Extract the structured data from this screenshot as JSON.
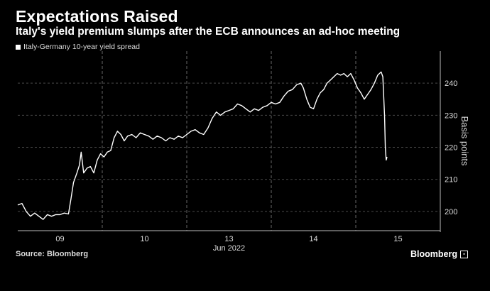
{
  "header": {
    "title": "Expectations Raised",
    "subtitle": "Italy's yield premium slumps after the ECB announces an ad-hoc meeting"
  },
  "footer": {
    "source": "Source: Bloomberg",
    "brand": "Bloomberg"
  },
  "colors": {
    "background": "#000000",
    "line": "#ffffff",
    "grid": "#555555",
    "text": "#dddddd"
  },
  "chart_data": {
    "type": "line",
    "title": "Expectations Raised",
    "subtitle": "Italy's yield premium slumps after the ECB announces an ad-hoc meeting",
    "ylabel": "Basis points",
    "xlabel": "Jun 2022",
    "x_ticks": [
      "09",
      "10",
      "13",
      "14",
      "15"
    ],
    "y_ticks": [
      200,
      210,
      220,
      230,
      240
    ],
    "ylim": [
      194,
      250
    ],
    "xlim": [
      0,
      5
    ],
    "grid": true,
    "legend_placement": "top-left",
    "series": [
      {
        "name": "Italy-Germany 10-year yield spread",
        "points": [
          [
            0.0,
            202.0
          ],
          [
            0.05,
            202.5
          ],
          [
            0.1,
            200.0
          ],
          [
            0.15,
            198.5
          ],
          [
            0.2,
            199.5
          ],
          [
            0.25,
            198.5
          ],
          [
            0.3,
            197.5
          ],
          [
            0.35,
            199.0
          ],
          [
            0.4,
            198.5
          ],
          [
            0.45,
            199.0
          ],
          [
            0.5,
            199.0
          ],
          [
            0.55,
            199.5
          ],
          [
            0.6,
            199.2
          ],
          [
            0.63,
            204.0
          ],
          [
            0.66,
            209.0
          ],
          [
            0.7,
            212.0
          ],
          [
            0.73,
            214.5
          ],
          [
            0.75,
            218.5
          ],
          [
            0.78,
            212.0
          ],
          [
            0.82,
            213.5
          ],
          [
            0.86,
            214.0
          ],
          [
            0.9,
            212.0
          ],
          [
            0.94,
            216.0
          ],
          [
            0.98,
            218.0
          ],
          [
            1.02,
            217.0
          ],
          [
            1.06,
            218.5
          ],
          [
            1.1,
            219.0
          ],
          [
            1.14,
            223.0
          ],
          [
            1.18,
            225.0
          ],
          [
            1.22,
            224.0
          ],
          [
            1.26,
            222.0
          ],
          [
            1.3,
            223.5
          ],
          [
            1.35,
            224.0
          ],
          [
            1.4,
            223.0
          ],
          [
            1.45,
            224.5
          ],
          [
            1.5,
            224.0
          ],
          [
            1.55,
            223.5
          ],
          [
            1.6,
            222.5
          ],
          [
            1.65,
            223.5
          ],
          [
            1.7,
            223.0
          ],
          [
            1.75,
            222.0
          ],
          [
            1.8,
            223.0
          ],
          [
            1.85,
            222.5
          ],
          [
            1.9,
            223.5
          ],
          [
            1.95,
            223.0
          ],
          [
            2.0,
            224.0
          ],
          [
            2.05,
            225.0
          ],
          [
            2.1,
            225.5
          ],
          [
            2.15,
            224.5
          ],
          [
            2.2,
            224.0
          ],
          [
            2.25,
            226.0
          ],
          [
            2.3,
            229.0
          ],
          [
            2.35,
            231.0
          ],
          [
            2.4,
            230.0
          ],
          [
            2.45,
            231.0
          ],
          [
            2.5,
            231.5
          ],
          [
            2.55,
            232.0
          ],
          [
            2.6,
            233.5
          ],
          [
            2.65,
            233.0
          ],
          [
            2.7,
            232.0
          ],
          [
            2.75,
            231.0
          ],
          [
            2.8,
            232.0
          ],
          [
            2.85,
            231.5
          ],
          [
            2.9,
            232.5
          ],
          [
            2.95,
            233.0
          ],
          [
            3.0,
            234.0
          ],
          [
            3.05,
            233.5
          ],
          [
            3.1,
            234.0
          ],
          [
            3.15,
            236.0
          ],
          [
            3.2,
            237.5
          ],
          [
            3.25,
            238.0
          ],
          [
            3.3,
            239.5
          ],
          [
            3.35,
            240.0
          ],
          [
            3.38,
            238.5
          ],
          [
            3.42,
            235.0
          ],
          [
            3.46,
            232.5
          ],
          [
            3.5,
            232.0
          ],
          [
            3.54,
            235.0
          ],
          [
            3.58,
            237.0
          ],
          [
            3.62,
            238.0
          ],
          [
            3.66,
            240.0
          ],
          [
            3.7,
            241.0
          ],
          [
            3.74,
            242.0
          ],
          [
            3.78,
            243.0
          ],
          [
            3.82,
            242.5
          ],
          [
            3.86,
            243.0
          ],
          [
            3.9,
            242.0
          ],
          [
            3.94,
            243.0
          ],
          [
            3.98,
            241.0
          ],
          [
            4.02,
            238.5
          ],
          [
            4.06,
            237.0
          ],
          [
            4.1,
            235.0
          ],
          [
            4.14,
            236.5
          ],
          [
            4.18,
            238.0
          ],
          [
            4.22,
            240.0
          ],
          [
            4.26,
            242.5
          ],
          [
            4.3,
            243.5
          ],
          [
            4.32,
            242.0
          ],
          [
            4.34,
            230.0
          ],
          [
            4.35,
            220.0
          ],
          [
            4.36,
            216.0
          ],
          [
            4.37,
            217.0
          ]
        ]
      }
    ]
  }
}
